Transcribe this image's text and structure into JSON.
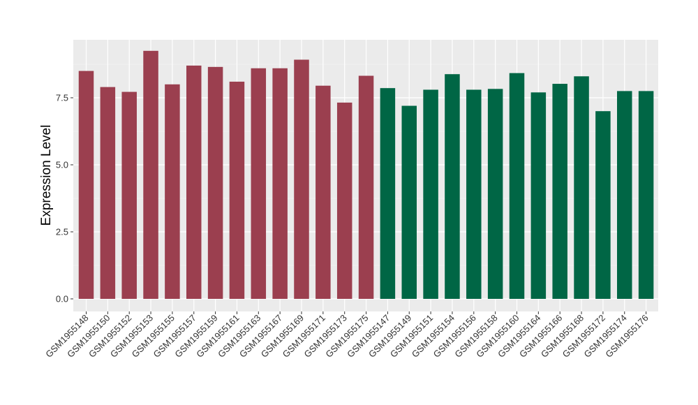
{
  "chart_data": {
    "type": "bar",
    "ylabel": "Expression Level",
    "xlabel": "",
    "ylim": [
      0,
      9.7
    ],
    "yticks": [
      0.0,
      2.5,
      5.0,
      7.5
    ],
    "ytick_labels": [
      "0.0",
      "2.5",
      "5.0",
      "7.5"
    ],
    "grid": true,
    "legend": "none",
    "colors": {
      "group1": "#9b3f4f",
      "group2": "#006645",
      "panel": "#ebebeb",
      "gridline": "#ffffff"
    },
    "categories": [
      "GSM1955148",
      "GSM1955150",
      "GSM1955152",
      "GSM1955153",
      "GSM1955155",
      "GSM1955157",
      "GSM1955159",
      "GSM1955161",
      "GSM1955163",
      "GSM1955167",
      "GSM1955169",
      "GSM1955171",
      "GSM1955173",
      "GSM1955175",
      "GSM1955147",
      "GSM1955149",
      "GSM1955151",
      "GSM1955154",
      "GSM1955156",
      "GSM1955158",
      "GSM1955160",
      "GSM1955164",
      "GSM1955166",
      "GSM1955168",
      "GSM1955172",
      "GSM1955174",
      "GSM1955176"
    ],
    "values": [
      8.5,
      7.9,
      7.72,
      9.25,
      8.0,
      8.7,
      8.65,
      8.1,
      8.6,
      8.6,
      8.92,
      7.95,
      7.32,
      8.32,
      7.86,
      7.2,
      7.8,
      8.38,
      7.8,
      7.83,
      8.42,
      7.7,
      8.02,
      8.3,
      7.0,
      7.75,
      7.75
    ],
    "groups": [
      1,
      1,
      1,
      1,
      1,
      1,
      1,
      1,
      1,
      1,
      1,
      1,
      1,
      1,
      2,
      2,
      2,
      2,
      2,
      2,
      2,
      2,
      2,
      2,
      2,
      2,
      2
    ]
  }
}
